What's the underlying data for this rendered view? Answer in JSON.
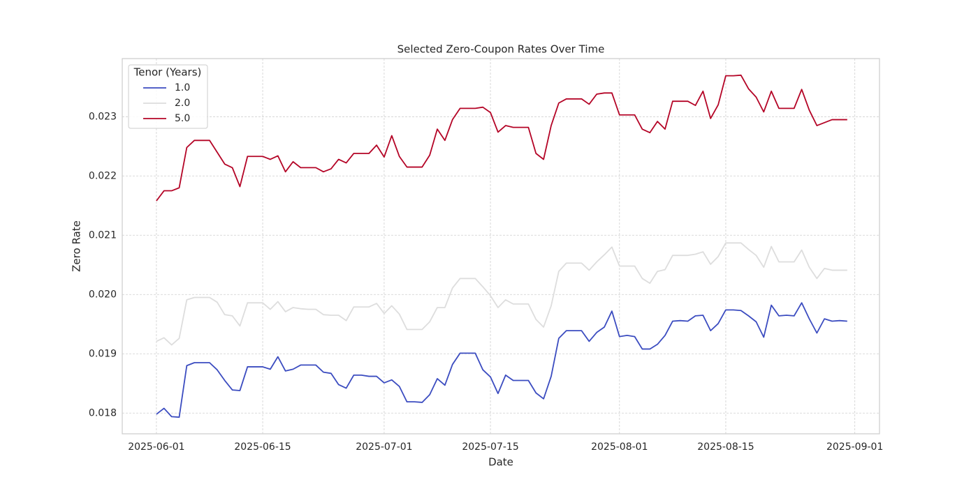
{
  "chart_data": {
    "type": "line",
    "title": "Selected Zero-Coupon Rates Over Time",
    "xlabel": "Date",
    "ylabel": "Zero Rate",
    "legend_title": "Tenor (Years)",
    "legend": "upper left",
    "grid": true,
    "x": [
      "2025-06-01",
      "2025-06-02",
      "2025-06-03",
      "2025-06-04",
      "2025-06-05",
      "2025-06-06",
      "2025-06-07",
      "2025-06-08",
      "2025-06-09",
      "2025-06-10",
      "2025-06-11",
      "2025-06-12",
      "2025-06-13",
      "2025-06-14",
      "2025-06-15",
      "2025-06-16",
      "2025-06-17",
      "2025-06-18",
      "2025-06-19",
      "2025-06-20",
      "2025-06-21",
      "2025-06-22",
      "2025-06-23",
      "2025-06-24",
      "2025-06-25",
      "2025-06-26",
      "2025-06-27",
      "2025-06-28",
      "2025-06-29",
      "2025-06-30",
      "2025-07-01",
      "2025-07-02",
      "2025-07-03",
      "2025-07-04",
      "2025-07-05",
      "2025-07-06",
      "2025-07-07",
      "2025-07-08",
      "2025-07-09",
      "2025-07-10",
      "2025-07-11",
      "2025-07-12",
      "2025-07-13",
      "2025-07-14",
      "2025-07-15",
      "2025-07-16",
      "2025-07-17",
      "2025-07-18",
      "2025-07-19",
      "2025-07-20",
      "2025-07-21",
      "2025-07-22",
      "2025-07-23",
      "2025-07-24",
      "2025-07-25",
      "2025-07-26",
      "2025-07-27",
      "2025-07-28",
      "2025-07-29",
      "2025-07-30",
      "2025-07-31",
      "2025-08-01",
      "2025-08-02",
      "2025-08-03",
      "2025-08-04",
      "2025-08-05",
      "2025-08-06",
      "2025-08-07",
      "2025-08-08",
      "2025-08-09",
      "2025-08-10",
      "2025-08-11",
      "2025-08-12",
      "2025-08-13",
      "2025-08-14",
      "2025-08-15",
      "2025-08-16",
      "2025-08-17",
      "2025-08-18",
      "2025-08-19",
      "2025-08-20",
      "2025-08-21",
      "2025-08-22",
      "2025-08-23",
      "2025-08-24",
      "2025-08-25",
      "2025-08-26",
      "2025-08-27",
      "2025-08-28",
      "2025-08-29",
      "2025-08-30",
      "2025-08-31"
    ],
    "series": [
      {
        "name": "1.0",
        "color": "#3b4cc0",
        "values": [
          0.01798,
          0.01808,
          0.01794,
          0.01793,
          0.0188,
          0.01885,
          0.01885,
          0.01885,
          0.01873,
          0.01855,
          0.01839,
          0.01838,
          0.01878,
          0.01878,
          0.01878,
          0.01874,
          0.01895,
          0.01871,
          0.01874,
          0.01881,
          0.01881,
          0.01881,
          0.01869,
          0.01867,
          0.01848,
          0.01842,
          0.01864,
          0.01864,
          0.01862,
          0.01862,
          0.01851,
          0.01856,
          0.01845,
          0.01819,
          0.01819,
          0.01818,
          0.01831,
          0.01858,
          0.01847,
          0.01882,
          0.01901,
          0.01901,
          0.01901,
          0.01873,
          0.01861,
          0.01833,
          0.01864,
          0.01855,
          0.01855,
          0.01855,
          0.01834,
          0.01824,
          0.01862,
          0.01926,
          0.01939,
          0.01939,
          0.01939,
          0.01921,
          0.01936,
          0.01945,
          0.01972,
          0.01929,
          0.01931,
          0.01929,
          0.01908,
          0.01908,
          0.01916,
          0.01931,
          0.01955,
          0.01956,
          0.01955,
          0.01964,
          0.01965,
          0.01939,
          0.01951,
          0.01974,
          0.01974,
          0.01973,
          0.01964,
          0.01954,
          0.01928,
          0.01982,
          0.01964,
          0.01965,
          0.01964,
          0.01986,
          0.01959,
          0.01935,
          0.01959,
          0.01955,
          0.01956,
          0.01955
        ]
      },
      {
        "name": "2.0",
        "color": "#dddddd",
        "values": [
          0.01921,
          0.01927,
          0.01915,
          0.01926,
          0.01991,
          0.01995,
          0.01995,
          0.01995,
          0.01987,
          0.01966,
          0.01964,
          0.01947,
          0.01986,
          0.01986,
          0.01986,
          0.01975,
          0.01988,
          0.01971,
          0.01978,
          0.01976,
          0.01975,
          0.01975,
          0.01966,
          0.01965,
          0.01965,
          0.01956,
          0.01979,
          0.01979,
          0.01979,
          0.01985,
          0.01968,
          0.01981,
          0.01967,
          0.01941,
          0.01941,
          0.01941,
          0.01954,
          0.01978,
          0.01978,
          0.02011,
          0.02027,
          0.02027,
          0.02027,
          0.02013,
          0.01998,
          0.01978,
          0.01991,
          0.01984,
          0.01984,
          0.01984,
          0.01958,
          0.01945,
          0.01981,
          0.02039,
          0.02053,
          0.02053,
          0.02053,
          0.02041,
          0.02055,
          0.02067,
          0.0208,
          0.02048,
          0.02048,
          0.02048,
          0.02027,
          0.02019,
          0.02039,
          0.02042,
          0.02066,
          0.02066,
          0.02066,
          0.02068,
          0.02072,
          0.02051,
          0.02064,
          0.02087,
          0.02087,
          0.02087,
          0.02076,
          0.02066,
          0.02046,
          0.02081,
          0.02055,
          0.02055,
          0.02055,
          0.02075,
          0.02046,
          0.02027,
          0.02044,
          0.02041,
          0.02041,
          0.02041
        ]
      },
      {
        "name": "5.0",
        "color": "#b40426",
        "values": [
          0.02158,
          0.02175,
          0.02175,
          0.0218,
          0.02248,
          0.0226,
          0.0226,
          0.0226,
          0.0224,
          0.0222,
          0.02214,
          0.02182,
          0.02233,
          0.02233,
          0.02233,
          0.02228,
          0.02234,
          0.02207,
          0.02224,
          0.02214,
          0.02214,
          0.02214,
          0.02207,
          0.02212,
          0.02228,
          0.02222,
          0.02238,
          0.02238,
          0.02238,
          0.02252,
          0.02232,
          0.02268,
          0.02233,
          0.02215,
          0.02215,
          0.02215,
          0.02235,
          0.02279,
          0.0226,
          0.02295,
          0.02314,
          0.02314,
          0.02314,
          0.02316,
          0.02307,
          0.02274,
          0.02285,
          0.02282,
          0.02282,
          0.02282,
          0.02238,
          0.02228,
          0.02285,
          0.02323,
          0.0233,
          0.0233,
          0.0233,
          0.02321,
          0.02338,
          0.0234,
          0.0234,
          0.02303,
          0.02303,
          0.02303,
          0.02279,
          0.02273,
          0.02292,
          0.02279,
          0.02326,
          0.02326,
          0.02326,
          0.02319,
          0.02343,
          0.02297,
          0.0232,
          0.02369,
          0.02369,
          0.0237,
          0.02347,
          0.02333,
          0.02308,
          0.02343,
          0.02314,
          0.02314,
          0.02314,
          0.02346,
          0.02311,
          0.02285,
          0.0229,
          0.02295,
          0.02295,
          0.02295
        ]
      }
    ],
    "xlim": [
      "2025-05-27T12:00",
      "2025-09-04T06:00"
    ],
    "xticks": [
      "2025-06-01",
      "2025-06-15",
      "2025-07-01",
      "2025-07-15",
      "2025-08-01",
      "2025-08-15",
      "2025-09-01"
    ],
    "ylim": [
      0.01765,
      0.02398
    ],
    "yticks": [
      0.018,
      0.019,
      {
        "value": 0.02,
        "label": "0.020"
      },
      0.021,
      0.022,
      0.023
    ]
  }
}
